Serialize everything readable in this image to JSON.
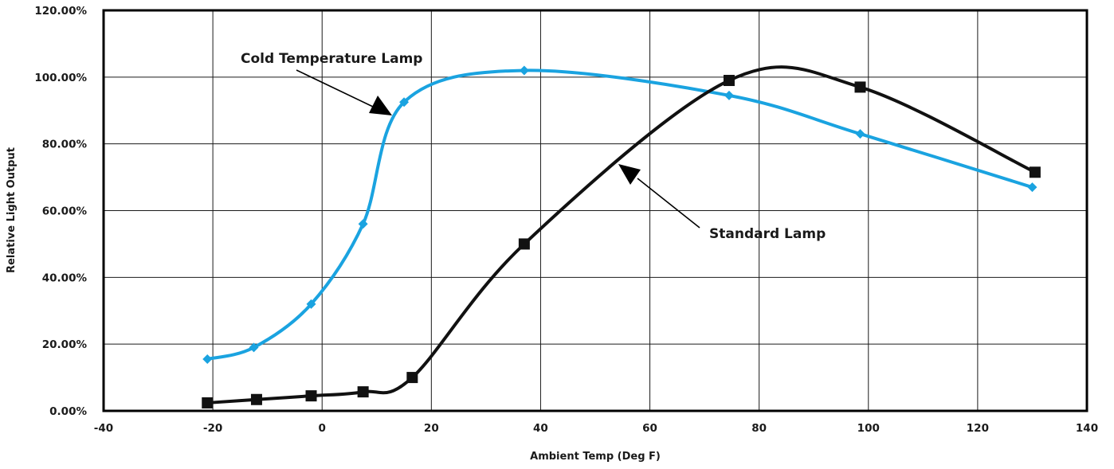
{
  "chart_data": {
    "type": "line",
    "title": "",
    "xlabel": "Ambient Temp (Deg F)",
    "ylabel": "Relative Light Output",
    "xlim": [
      -40,
      140
    ],
    "ylim": [
      0,
      1.2
    ],
    "x_ticks": [
      -40,
      -20,
      0,
      20,
      40,
      60,
      80,
      100,
      120,
      140
    ],
    "x_tick_labels": [
      "-40",
      "-20",
      "0",
      "20",
      "40",
      "60",
      "80",
      "100",
      "120",
      "140"
    ],
    "y_ticks": [
      0,
      0.2,
      0.4,
      0.6,
      0.8,
      1.0,
      1.2
    ],
    "y_tick_labels": [
      "0.00%",
      "20.00%",
      "40.00%",
      "60.00%",
      "80.00%",
      "100.00%",
      "120.00%"
    ],
    "grid": true,
    "legend": "none",
    "series": [
      {
        "name": "Cold Temperature Lamp",
        "color": "#1aa3e0",
        "marker": "diamond",
        "x": [
          -21,
          -12.5,
          -2,
          7.5,
          15,
          37,
          74.5,
          98.5,
          130
        ],
        "y": [
          0.155,
          0.19,
          0.32,
          0.56,
          0.925,
          1.02,
          0.945,
          0.83,
          0.67
        ]
      },
      {
        "name": "Standard Lamp",
        "color": "#111111",
        "marker": "square",
        "x": [
          -21,
          -12,
          -2,
          7.5,
          16.5,
          37,
          74.5,
          98.5,
          130.5
        ],
        "y": [
          0.024,
          0.034,
          0.045,
          0.057,
          0.1,
          0.5,
          0.99,
          0.97,
          0.715
        ]
      }
    ],
    "annotations": [
      {
        "text": "Cold Temperature Lamp",
        "series": "Cold Temperature Lamp"
      },
      {
        "text": "Standard Lamp",
        "series": "Standard Lamp"
      }
    ]
  }
}
